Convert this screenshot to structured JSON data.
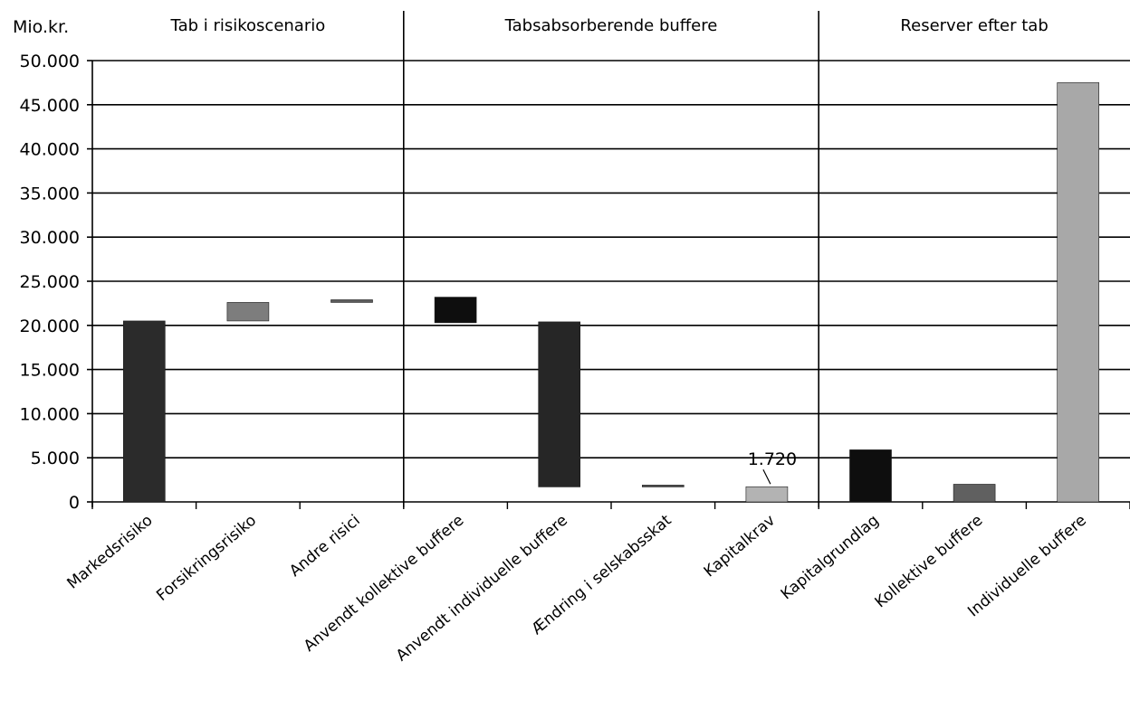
{
  "chart_data": {
    "type": "bar",
    "subtype": "waterfall",
    "unit_label": "Mio.kr.",
    "ylim": [
      0,
      50000
    ],
    "yticks": [
      "0",
      "5.000",
      "10.000",
      "15.000",
      "20.000",
      "25.000",
      "30.000",
      "35.000",
      "40.000",
      "45.000",
      "50.000"
    ],
    "grid": true,
    "sections": [
      {
        "title": "Tab i risikoscenario",
        "categories": [
          0,
          1,
          2
        ]
      },
      {
        "title": "Tabsabsorberende buffere",
        "categories": [
          3,
          4,
          5,
          6
        ]
      },
      {
        "title": "Reserver efter tab",
        "categories": [
          7,
          8,
          9
        ]
      }
    ],
    "categories": [
      "Markedsrisiko",
      "Forsikringsrisiko",
      "Andre risici",
      "Anvendt kollektive buffere",
      "Anvendt individuelle buffere",
      "Ændring i selskabsskat",
      "Kapitalkrav",
      "Kapitalgrundlag",
      "Kollektive buffere",
      "Individuelle buffere"
    ],
    "bars": [
      {
        "base": 0,
        "top": 20500,
        "color": "#2b2b2b"
      },
      {
        "base": 20500,
        "top": 22600,
        "color": "#7d7d7d"
      },
      {
        "base": 22600,
        "top": 22900,
        "color": "#5c5c5c"
      },
      {
        "base": 20300,
        "top": 23200,
        "color": "#0e0e0e"
      },
      {
        "base": 1700,
        "top": 20400,
        "color": "#262626"
      },
      {
        "base": 1700,
        "top": 1900,
        "color": "#444444"
      },
      {
        "base": 0,
        "top": 1720,
        "color": "#b3b3b3"
      },
      {
        "base": 0,
        "top": 5900,
        "color": "#0e0e0e"
      },
      {
        "base": 0,
        "top": 2000,
        "color": "#606060"
      },
      {
        "base": 0,
        "top": 47500,
        "color": "#a8a8a8"
      }
    ],
    "annotations": [
      {
        "category_index": 6,
        "text": "1.720"
      }
    ]
  }
}
